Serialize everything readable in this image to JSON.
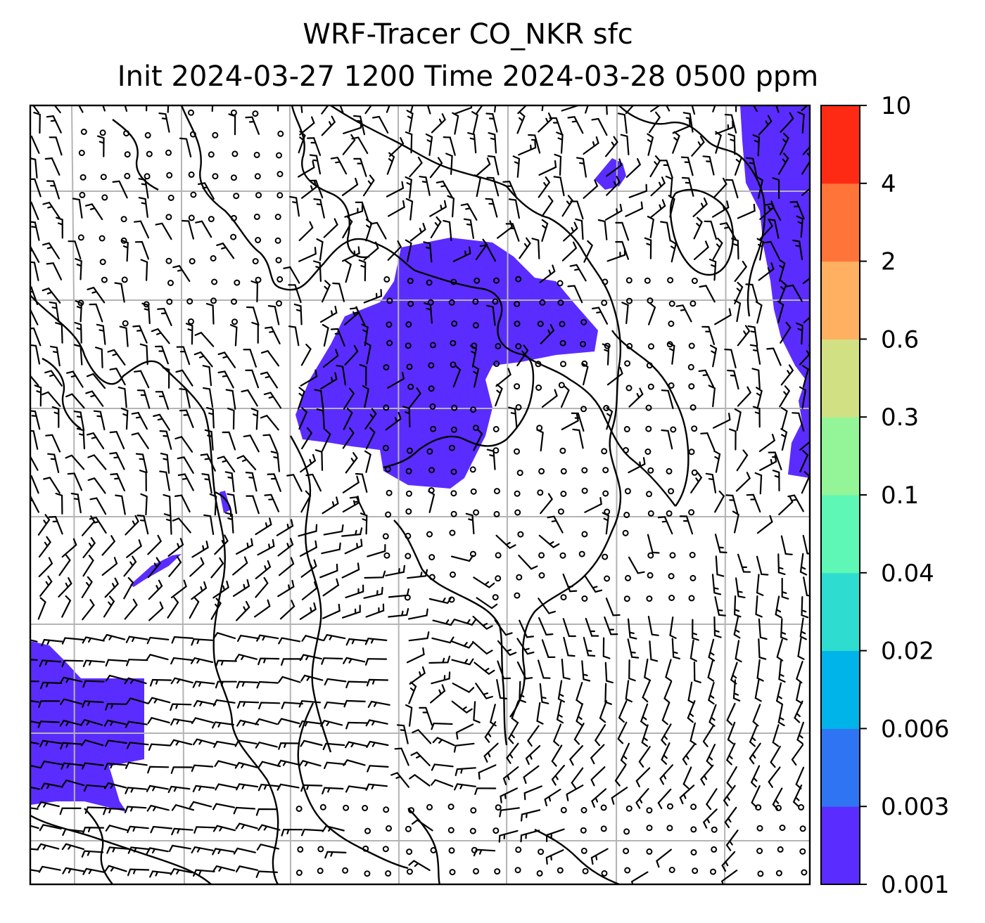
{
  "title": {
    "line1": "WRF-Tracer CO_NKR sfc",
    "line2": "Init 2024-03-27 1200 Time 2024-03-28 0500 ppm"
  },
  "colorbar": {
    "levels": [
      "0.001",
      "0.003",
      "0.006",
      "0.02",
      "0.04",
      "0.1",
      "0.3",
      "0.6",
      "2",
      "4",
      "10"
    ],
    "colors": [
      "#5b2cff",
      "#2f74f2",
      "#00b3e8",
      "#2fdcd0",
      "#5ef7b5",
      "#93f598",
      "#d2e084",
      "#ffb060",
      "#ff7438",
      "#ff2a14"
    ]
  },
  "map": {
    "field": "CO_NKR surface tracer (ppm)",
    "gridlines": true,
    "wind_barbs": true,
    "tracer_fill_color": "#5b2cff",
    "coastline_color": "#000000",
    "grid_color": "#b4b4b4"
  }
}
